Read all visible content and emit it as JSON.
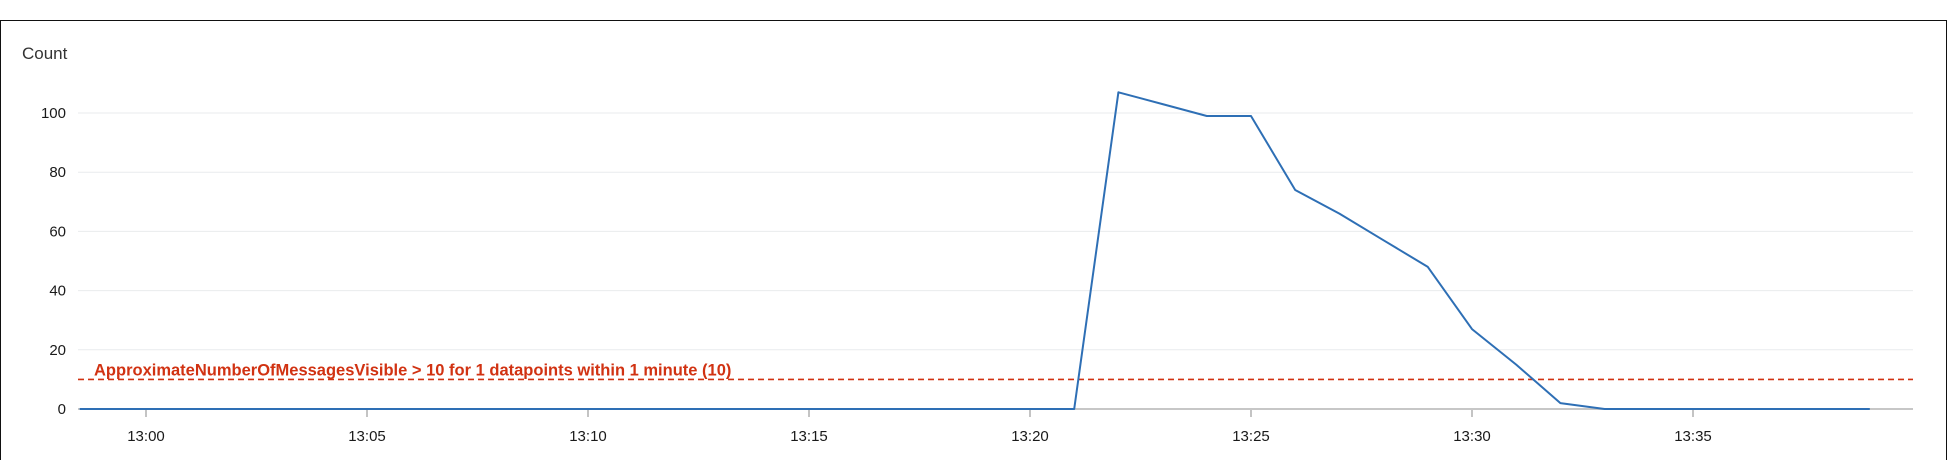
{
  "chart_data": {
    "type": "line",
    "ylabel": "Count",
    "xlabel": "",
    "title": "",
    "x_ticks": [
      "13:00",
      "13:05",
      "13:10",
      "13:15",
      "13:20",
      "13:25",
      "13:30",
      "13:35"
    ],
    "x_tick_minutes": [
      0,
      5,
      10,
      15,
      20,
      25,
      30,
      35
    ],
    "y_ticks": [
      0,
      20,
      40,
      60,
      80,
      100
    ],
    "xlim_minutes": [
      -1.5,
      39
    ],
    "ylim": [
      0,
      110
    ],
    "grid": true,
    "series": [
      {
        "x_minutes": [
          -1.5,
          0,
          5,
          10,
          15,
          20,
          21,
          22,
          23,
          24,
          25,
          26,
          27,
          28,
          29,
          30,
          31,
          32,
          33,
          34,
          35,
          36,
          37,
          38,
          39
        ],
        "values": [
          0,
          0,
          0,
          0,
          0,
          0,
          0,
          107,
          103,
          99,
          99,
          74,
          66,
          57,
          48,
          27,
          15,
          2,
          0,
          0,
          0,
          0,
          0,
          0,
          0
        ],
        "color": "#2e6fb5"
      }
    ],
    "threshold": {
      "value": 10,
      "label": "ApproximateNumberOfMessagesVisible > 10 for 1 datapoints within 1 minute (10)",
      "color": "#d13212"
    },
    "baseline_color": "#c7c7c7",
    "grid_color": "#e9ebed"
  }
}
